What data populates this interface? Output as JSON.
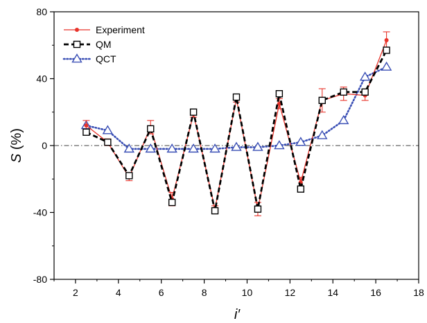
{
  "chart_data": {
    "type": "line",
    "title": "",
    "xlabel": "i′",
    "ylabel_main": "S",
    "ylabel_unit": " (%)",
    "xlim": [
      1,
      18
    ],
    "ylim": [
      -80,
      80
    ],
    "xticks": [
      2,
      4,
      6,
      8,
      10,
      12,
      14,
      16,
      18
    ],
    "yticks": [
      -80,
      -40,
      0,
      40,
      80
    ],
    "zero_line": true,
    "legend_position": "top-left",
    "series": [
      {
        "name": "Experiment",
        "color": "#e8332a",
        "style": "solid-line-dot-marker-errorbars",
        "x": [
          2.5,
          3.5,
          4.5,
          5.5,
          6.5,
          7.5,
          8.5,
          9.5,
          10.5,
          11.5,
          12.5,
          13.5,
          14.5,
          15.5,
          16.5
        ],
        "y": [
          12,
          2,
          -19,
          11,
          -32,
          19,
          -38,
          28,
          -38,
          25,
          -22,
          27,
          31,
          30,
          63
        ],
        "err": [
          3,
          2,
          2,
          4,
          4,
          2,
          2,
          2,
          4,
          3,
          3,
          7,
          4,
          3,
          5
        ]
      },
      {
        "name": "QM",
        "color": "#000000",
        "style": "dashed-line-square-marker",
        "x": [
          2.5,
          3.5,
          4.5,
          5.5,
          6.5,
          7.5,
          8.5,
          9.5,
          10.5,
          11.5,
          12.5,
          13.5,
          14.5,
          15.5,
          16.5
        ],
        "y": [
          8,
          2,
          -18,
          10,
          -34,
          20,
          -39,
          29,
          -38,
          31,
          -26,
          27,
          32,
          32,
          57
        ]
      },
      {
        "name": "QCT",
        "color": "#3a4fb5",
        "style": "dotted-line-triangle-marker",
        "x": [
          2.5,
          3.5,
          4.5,
          5.5,
          6.5,
          7.5,
          8.5,
          9.5,
          10.5,
          11.5,
          12.5,
          13.5,
          14.5,
          15.5,
          16.5
        ],
        "y": [
          12,
          9,
          -2,
          -2,
          -2,
          -2,
          -2,
          -1,
          -1,
          0,
          2,
          6,
          15,
          41,
          47
        ]
      }
    ]
  }
}
